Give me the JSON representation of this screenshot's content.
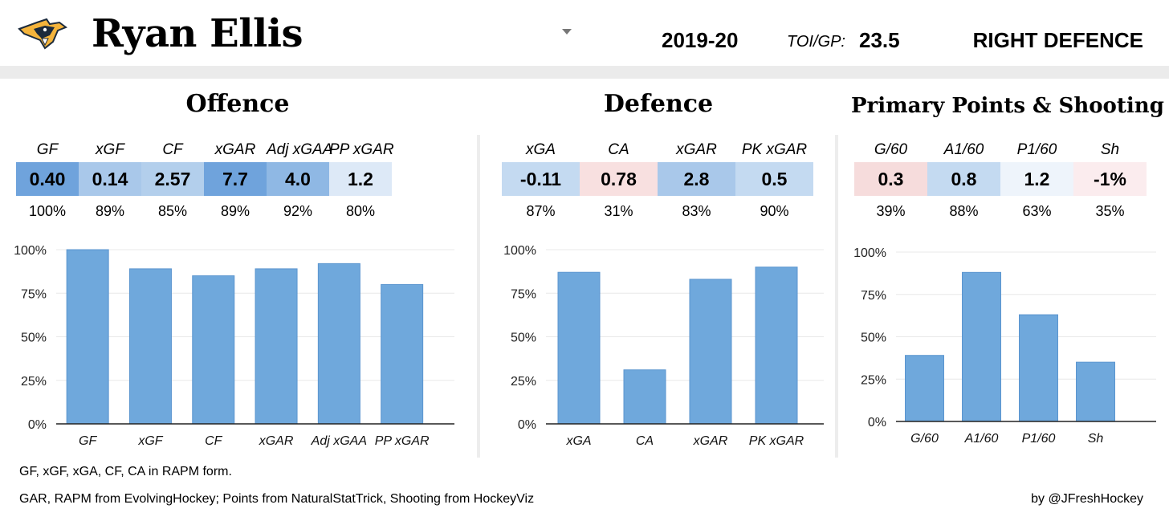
{
  "header": {
    "logo_icon": "predators-logo-icon",
    "player_name": "Ryan Ellis",
    "season": "2019-20",
    "toi_label": "TOI/GP:",
    "toi_value": "23.5",
    "position": "RIGHT DEFENCE"
  },
  "sections": [
    {
      "title": "Offence",
      "stats": [
        {
          "label": "GF",
          "value": "0.40",
          "pct_label": "100%",
          "color": "#6fa3dc"
        },
        {
          "label": "xGF",
          "value": "0.14",
          "pct_label": "89%",
          "color": "#a9c8ea"
        },
        {
          "label": "CF",
          "value": "2.57",
          "pct_label": "85%",
          "color": "#b3cfec"
        },
        {
          "label": "xGAR",
          "value": "7.7",
          "pct_label": "89%",
          "color": "#6fa3dc"
        },
        {
          "label": "Adj xGAA",
          "value": "4.0",
          "pct_label": "92%",
          "color": "#8fb8e4"
        },
        {
          "label": "PP xGAR",
          "value": "1.2",
          "pct_label": "80%",
          "color": "#dde9f7"
        }
      ]
    },
    {
      "title": "Defence",
      "stats": [
        {
          "label": "xGA",
          "value": "-0.11",
          "pct_label": "87%",
          "color": "#c4daf1"
        },
        {
          "label": "CA",
          "value": "0.78",
          "pct_label": "31%",
          "color": "#f8e0e0"
        },
        {
          "label": "xGAR",
          "value": "2.8",
          "pct_label": "83%",
          "color": "#a9c8ea"
        },
        {
          "label": "PK xGAR",
          "value": "0.5",
          "pct_label": "90%",
          "color": "#c4daf1"
        }
      ]
    },
    {
      "title": "Primary Points & Shooting",
      "stats": [
        {
          "label": "G/60",
          "value": "0.3",
          "pct_label": "39%",
          "color": "#f6dcdc"
        },
        {
          "label": "A1/60",
          "value": "0.8",
          "pct_label": "88%",
          "color": "#c4daf1"
        },
        {
          "label": "P1/60",
          "value": "1.2",
          "pct_label": "63%",
          "color": "#eef4fb"
        },
        {
          "label": "Sh",
          "value": "-1%",
          "pct_label": "35%",
          "color": "#fbecee"
        }
      ]
    }
  ],
  "chart_data": [
    {
      "type": "bar",
      "title": "Offence",
      "categories": [
        "GF",
        "xGF",
        "CF",
        "xGAR",
        "Adj xGAA",
        "PP xGAR"
      ],
      "values": [
        100,
        89,
        85,
        89,
        92,
        80
      ],
      "ylim": [
        0,
        100
      ],
      "yticks": [
        "0%",
        "25%",
        "50%",
        "75%",
        "100%"
      ],
      "grid": true,
      "bar_color": "#6fa8dc"
    },
    {
      "type": "bar",
      "title": "Defence",
      "categories": [
        "xGA",
        "CA",
        "xGAR",
        "PK xGAR"
      ],
      "values": [
        87,
        31,
        83,
        90
      ],
      "ylim": [
        0,
        100
      ],
      "yticks": [
        "0%",
        "25%",
        "50%",
        "75%",
        "100%"
      ],
      "grid": true,
      "bar_color": "#6fa8dc"
    },
    {
      "type": "bar",
      "title": "Primary Points & Shooting",
      "categories": [
        "G/60",
        "A1/60",
        "P1/60",
        "Sh"
      ],
      "values": [
        39,
        88,
        63,
        35
      ],
      "ylim": [
        0,
        100
      ],
      "yticks": [
        "0%",
        "25%",
        "50%",
        "75%",
        "100%"
      ],
      "grid": true,
      "bar_color": "#6fa8dc"
    }
  ],
  "footer": {
    "note1": "GF, xGF, xGA, CF, CA in RAPM form.",
    "note2": "GAR, RAPM from EvolvingHockey; Points from NaturalStatTrick, Shooting from HockeyViz",
    "credit": "by @JFreshHockey"
  }
}
